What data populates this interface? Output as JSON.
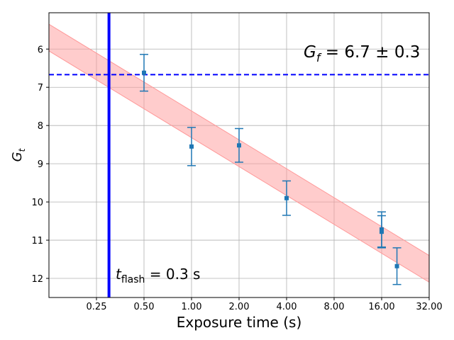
{
  "chart_data": {
    "type": "scatter",
    "xlabel": "Exposure time (s)",
    "ylabel": "G",
    "ylabel_sub": "t",
    "x_scale": "log2",
    "xlim": [
      0.125,
      32
    ],
    "ylim": [
      12.5,
      5.05
    ],
    "y_inverted": true,
    "grid": true,
    "x_ticks": [
      0.25,
      0.5,
      1,
      2,
      4,
      8,
      16,
      32
    ],
    "x_tick_labels": [
      "0.25",
      "0.50",
      "1.00",
      "2.00",
      "4.00",
      "8.00",
      "16.00",
      "32.00"
    ],
    "y_ticks": [
      6,
      7,
      8,
      9,
      10,
      11,
      12
    ],
    "y_tick_labels": [
      "6",
      "7",
      "8",
      "9",
      "10",
      "11",
      "12"
    ],
    "series": [
      {
        "type": "errorbar",
        "color": "#1f77b4",
        "points": [
          {
            "x": 0.5,
            "y": 6.62,
            "err": 0.48
          },
          {
            "x": 1,
            "y": 8.55,
            "err": 0.5
          },
          {
            "x": 2,
            "y": 8.52,
            "err": 0.44
          },
          {
            "x": 4,
            "y": 9.9,
            "err": 0.45
          },
          {
            "x": 16,
            "y": 10.72,
            "err": 0.46
          },
          {
            "x": 16,
            "y": 10.78,
            "err": 0.42
          },
          {
            "x": 20,
            "y": 11.68,
            "err": 0.48
          }
        ]
      }
    ],
    "band": {
      "color": "#ff9999",
      "upper": [
        {
          "x": 0.125,
          "y": 5.35
        },
        {
          "x": 32,
          "y": 11.4
        }
      ],
      "lower": [
        {
          "x": 0.125,
          "y": 6.05
        },
        {
          "x": 32,
          "y": 12.1
        }
      ]
    },
    "hline": {
      "y": 6.67,
      "color": "#0000ff",
      "style": "dashed"
    },
    "vline": {
      "x": 0.3,
      "color": "#0000ff"
    },
    "annotations": {
      "gf_text": {
        "main": "G",
        "sub": "f",
        "rest": " = 6.7 ± 0.3"
      },
      "tflash_text": {
        "main": "t",
        "sub": "flash",
        "rest": " = 0.3 s"
      }
    }
  }
}
